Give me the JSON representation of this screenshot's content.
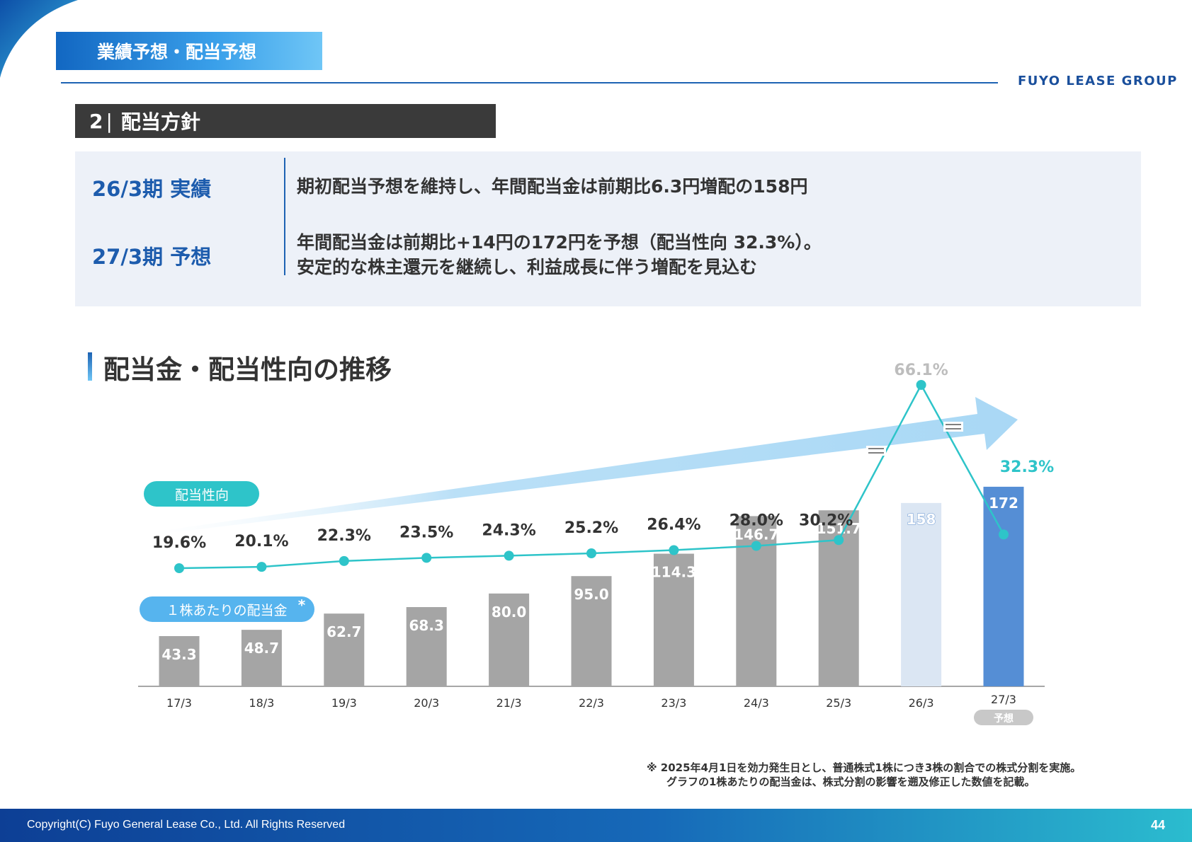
{
  "header": {
    "tag": "業績予想・配当予想",
    "logo": "FUYO LEASE GROUP"
  },
  "section": {
    "number": "2",
    "separator": "|",
    "title": "配当方針"
  },
  "policy": {
    "rows": [
      {
        "label": "26/3期 実績",
        "lines": [
          "期初配当予想を維持し、年間配当金は前期比6.3円増配の158円"
        ]
      },
      {
        "label": "27/3期 予想",
        "lines": [
          "年間配当金は前期比+14円の172円を予想（配当性向 32.3%）。",
          "安定的な株主還元を継続し、利益成長に伴う増配を見込む"
        ]
      }
    ]
  },
  "chart_title": "配当金・配当性向の推移",
  "chart_data": {
    "type": "bar",
    "categories": [
      "17/3",
      "18/3",
      "19/3",
      "20/3",
      "21/3",
      "22/3",
      "23/3",
      "24/3",
      "25/3",
      "26/3",
      "27/3"
    ],
    "series": [
      {
        "name": "１株あたりの配当金",
        "type": "bar",
        "values": [
          43.3,
          48.7,
          62.7,
          68.3,
          80.0,
          95.0,
          114.3,
          146.7,
          151.7,
          158,
          172
        ],
        "labels": [
          "43.3",
          "48.7",
          "62.7",
          "68.3",
          "80.0",
          "95.0",
          "114.3",
          "146.7",
          "151.7",
          "158",
          "172"
        ]
      },
      {
        "name": "配当性向",
        "type": "line",
        "values": [
          19.6,
          20.1,
          22.3,
          23.5,
          24.3,
          25.2,
          26.4,
          28.0,
          30.2,
          66.1,
          32.3
        ],
        "labels": [
          "19.6%",
          "20.1%",
          "22.3%",
          "23.5%",
          "24.3%",
          "25.2%",
          "26.4%",
          "28.0%",
          "30.2%",
          "66.1%",
          "32.3%"
        ]
      }
    ],
    "legend": {
      "payout": "配当性向",
      "dps": "１株あたりの配当金",
      "dps_mark": "*"
    },
    "forecast_label": "予想",
    "colors": {
      "bar": "#a5a5a5",
      "bar_26": "#dbe6f3",
      "bar_27": "#558ed5",
      "line": "#2ec4c9",
      "arrow": "#a9d8f5"
    }
  },
  "note": {
    "line1": "※ 2025年4月1日を効力発生日とし、普通株式1株につき3株の割合での株式分割を実施。",
    "line2": "グラフの1株あたりの配当金は、株式分割の影響を遡及修正した数値を記載。"
  },
  "footer": {
    "copyright": "Copyright(C) Fuyo General Lease Co., Ltd. All Rights Reserved",
    "page": "44"
  }
}
